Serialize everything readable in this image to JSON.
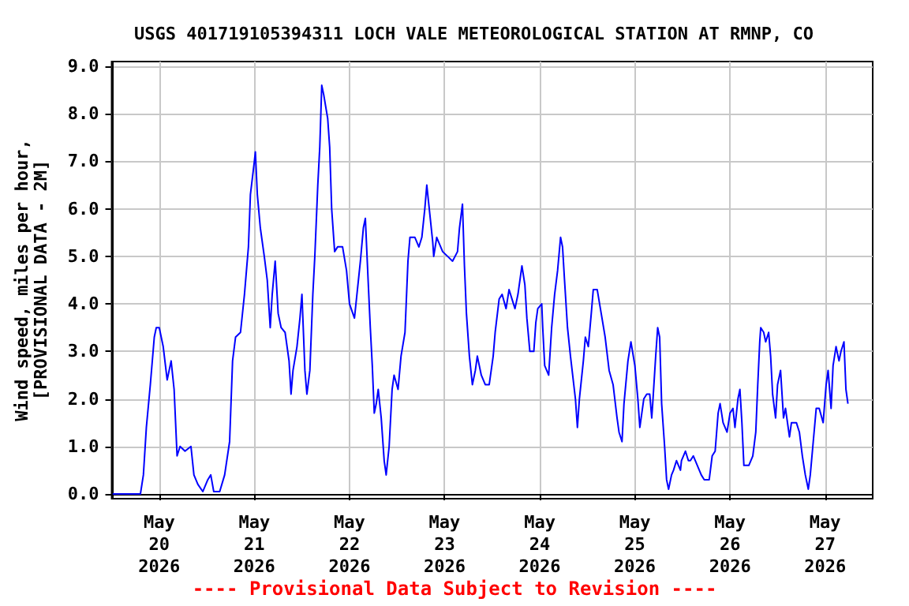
{
  "chart_data": {
    "type": "line",
    "title": "USGS 401719105394311 LOCH VALE METEOROLOGICAL STATION AT RMNP, CO",
    "ylabel": "Wind speed, miles per hour,\n[PROVISIONAL DATA - 2M]",
    "annotations": [
      "---- Provisional Data Subject to Revision ----"
    ],
    "xlim": [
      "2026-05-19T12:00",
      "2026-05-27T12:00"
    ],
    "xticks": [
      {
        "value": "2026-05-20",
        "label": "May\n20\n2026"
      },
      {
        "value": "2026-05-21",
        "label": "May\n21\n2026"
      },
      {
        "value": "2026-05-22",
        "label": "May\n22\n2026"
      },
      {
        "value": "2026-05-23",
        "label": "May\n23\n2026"
      },
      {
        "value": "2026-05-24",
        "label": "May\n24\n2026"
      },
      {
        "value": "2026-05-25",
        "label": "May\n25\n2026"
      },
      {
        "value": "2026-05-26",
        "label": "May\n26\n2026"
      },
      {
        "value": "2026-05-27",
        "label": "May\n27\n2026"
      }
    ],
    "ylim": [
      -0.1,
      9.1
    ],
    "yticks": [
      {
        "value": 0,
        "label": "0.0"
      },
      {
        "value": 1,
        "label": "1.0"
      },
      {
        "value": 2,
        "label": "2.0"
      },
      {
        "value": 3,
        "label": "3.0"
      },
      {
        "value": 4,
        "label": "4.0"
      },
      {
        "value": 5,
        "label": "5.0"
      },
      {
        "value": 6,
        "label": "6.0"
      },
      {
        "value": 7,
        "label": "7.0"
      },
      {
        "value": 8,
        "label": "8.0"
      },
      {
        "value": 9,
        "label": "9.0"
      }
    ],
    "grid": true,
    "marker": "none",
    "line_style": "solid",
    "series": [
      {
        "color": "#0000ff",
        "x": [
          "2026-05-19T12:15",
          "2026-05-19T19:15",
          "2026-05-19T20:00",
          "2026-05-19T20:45",
          "2026-05-19T21:45",
          "2026-05-19T22:45",
          "2026-05-19T23:15",
          "2026-05-20T00:00",
          "2026-05-20T01:00",
          "2026-05-20T02:00",
          "2026-05-20T03:00",
          "2026-05-20T03:45",
          "2026-05-20T04:30",
          "2026-05-20T05:15",
          "2026-05-20T06:30",
          "2026-05-20T08:00",
          "2026-05-20T08:45",
          "2026-05-20T09:45",
          "2026-05-20T11:00",
          "2026-05-20T12:15",
          "2026-05-20T13:00",
          "2026-05-20T13:45",
          "2026-05-20T15:15",
          "2026-05-20T16:30",
          "2026-05-20T17:45",
          "2026-05-20T18:30",
          "2026-05-20T19:15",
          "2026-05-20T20:30",
          "2026-05-20T21:30",
          "2026-05-20T22:30",
          "2026-05-20T23:00",
          "2026-05-21T00:00",
          "2026-05-21T00:15",
          "2026-05-21T00:45",
          "2026-05-21T01:30",
          "2026-05-21T02:30",
          "2026-05-21T03:15",
          "2026-05-21T04:00",
          "2026-05-21T04:30",
          "2026-05-21T05:15",
          "2026-05-21T06:00",
          "2026-05-21T06:45",
          "2026-05-21T07:45",
          "2026-05-21T08:45",
          "2026-05-21T09:15",
          "2026-05-21T09:45",
          "2026-05-21T10:45",
          "2026-05-21T11:30",
          "2026-05-21T12:00",
          "2026-05-21T12:45",
          "2026-05-21T13:15",
          "2026-05-21T14:00",
          "2026-05-21T14:45",
          "2026-05-21T15:15",
          "2026-05-21T16:00",
          "2026-05-21T16:30",
          "2026-05-21T17:00",
          "2026-05-21T17:30",
          "2026-05-21T18:30",
          "2026-05-21T19:00",
          "2026-05-21T19:30",
          "2026-05-21T20:15",
          "2026-05-21T21:00",
          "2026-05-21T22:15",
          "2026-05-21T23:15",
          "2026-05-22T00:00",
          "2026-05-22T01:15",
          "2026-05-22T01:45",
          "2026-05-22T02:45",
          "2026-05-22T03:30",
          "2026-05-22T04:00",
          "2026-05-22T04:45",
          "2026-05-22T05:15",
          "2026-05-22T05:45",
          "2026-05-22T06:15",
          "2026-05-22T06:45",
          "2026-05-22T07:15",
          "2026-05-22T08:00",
          "2026-05-22T08:45",
          "2026-05-22T09:15",
          "2026-05-22T10:00",
          "2026-05-22T10:45",
          "2026-05-22T11:15",
          "2026-05-22T12:15",
          "2026-05-22T13:00",
          "2026-05-22T14:00",
          "2026-05-22T14:45",
          "2026-05-22T15:15",
          "2026-05-22T16:30",
          "2026-05-22T17:30",
          "2026-05-22T18:15",
          "2026-05-22T19:00",
          "2026-05-22T19:30",
          "2026-05-22T20:15",
          "2026-05-22T21:00",
          "2026-05-22T21:15",
          "2026-05-22T22:00",
          "2026-05-22T22:30",
          "2026-05-22T23:30",
          "2026-05-23T00:45",
          "2026-05-23T02:00",
          "2026-05-23T03:15",
          "2026-05-23T03:45",
          "2026-05-23T04:30",
          "2026-05-23T05:00",
          "2026-05-23T05:30",
          "2026-05-23T06:15",
          "2026-05-23T07:00",
          "2026-05-23T07:45",
          "2026-05-23T08:15",
          "2026-05-23T09:15",
          "2026-05-23T10:15",
          "2026-05-23T11:15",
          "2026-05-23T12:15",
          "2026-05-23T12:45",
          "2026-05-23T13:45",
          "2026-05-23T14:30",
          "2026-05-23T15:30",
          "2026-05-23T16:15",
          "2026-05-23T17:00",
          "2026-05-23T17:45",
          "2026-05-23T18:30",
          "2026-05-23T19:30",
          "2026-05-23T20:15",
          "2026-05-23T20:45",
          "2026-05-23T21:30",
          "2026-05-23T22:30",
          "2026-05-23T23:00",
          "2026-05-23T23:30",
          "2026-05-24T00:30",
          "2026-05-24T00:45",
          "2026-05-24T01:15",
          "2026-05-24T02:15",
          "2026-05-24T03:00",
          "2026-05-24T03:45",
          "2026-05-24T04:30",
          "2026-05-24T05:15",
          "2026-05-24T05:45",
          "2026-05-24T06:15",
          "2026-05-24T07:00",
          "2026-05-24T07:45",
          "2026-05-24T09:00",
          "2026-05-24T09:30",
          "2026-05-24T10:00",
          "2026-05-24T11:00",
          "2026-05-24T11:30",
          "2026-05-24T12:15",
          "2026-05-24T13:00",
          "2026-05-24T13:30",
          "2026-05-24T14:30",
          "2026-05-24T15:30",
          "2026-05-24T16:30",
          "2026-05-24T17:30",
          "2026-05-24T18:30",
          "2026-05-24T19:30",
          "2026-05-24T20:00",
          "2026-05-24T20:45",
          "2026-05-24T21:15",
          "2026-05-24T22:15",
          "2026-05-24T23:00",
          "2026-05-25T00:00",
          "2026-05-25T00:45",
          "2026-05-25T01:15",
          "2026-05-25T01:45",
          "2026-05-25T02:15",
          "2026-05-25T03:00",
          "2026-05-25T03:45",
          "2026-05-25T04:15",
          "2026-05-25T04:30",
          "2026-05-25T05:15",
          "2026-05-25T05:45",
          "2026-05-25T06:15",
          "2026-05-25T06:45",
          "2026-05-25T07:30",
          "2026-05-25T08:00",
          "2026-05-25T08:30",
          "2026-05-25T09:15",
          "2026-05-25T09:45",
          "2026-05-25T10:30",
          "2026-05-25T11:30",
          "2026-05-25T11:45",
          "2026-05-25T12:45",
          "2026-05-25T13:30",
          "2026-05-25T14:00",
          "2026-05-25T14:45",
          "2026-05-25T15:45",
          "2026-05-25T16:45",
          "2026-05-25T17:30",
          "2026-05-25T18:45",
          "2026-05-25T19:30",
          "2026-05-25T20:15",
          "2026-05-25T21:00",
          "2026-05-25T21:30",
          "2026-05-25T22:15",
          "2026-05-25T23:15",
          "2026-05-26T00:00",
          "2026-05-26T00:45",
          "2026-05-26T01:15",
          "2026-05-26T02:00",
          "2026-05-26T02:30",
          "2026-05-26T03:00",
          "2026-05-26T03:30",
          "2026-05-26T04:45",
          "2026-05-26T05:45",
          "2026-05-26T06:30",
          "2026-05-26T07:00",
          "2026-05-26T07:30",
          "2026-05-26T07:45",
          "2026-05-26T08:30",
          "2026-05-26T09:00",
          "2026-05-26T09:45",
          "2026-05-26T10:15",
          "2026-05-26T10:45",
          "2026-05-26T11:30",
          "2026-05-26T12:00",
          "2026-05-26T12:45",
          "2026-05-26T13:30",
          "2026-05-26T14:00",
          "2026-05-26T15:00",
          "2026-05-26T15:30",
          "2026-05-26T16:45",
          "2026-05-26T17:30",
          "2026-05-26T18:15",
          "2026-05-26T19:00",
          "2026-05-26T19:45",
          "2026-05-26T20:15",
          "2026-05-26T21:00",
          "2026-05-26T21:45",
          "2026-05-26T22:30",
          "2026-05-26T23:30",
          "2026-05-27T00:15",
          "2026-05-27T00:45",
          "2026-05-27T01:30",
          "2026-05-27T02:00",
          "2026-05-27T02:45",
          "2026-05-27T03:30",
          "2026-05-27T04:00",
          "2026-05-27T04:45",
          "2026-05-27T05:15",
          "2026-05-27T05:45"
        ],
        "values": [
          0.0,
          0.0,
          0.4,
          1.4,
          2.3,
          3.3,
          3.5,
          3.5,
          3.1,
          2.4,
          2.8,
          2.2,
          0.8,
          1.0,
          0.9,
          1.0,
          0.4,
          0.2,
          0.05,
          0.3,
          0.4,
          0.05,
          0.05,
          0.4,
          1.1,
          2.8,
          3.3,
          3.4,
          4.2,
          5.2,
          6.3,
          7.0,
          7.2,
          6.3,
          5.6,
          5.0,
          4.5,
          3.5,
          4.2,
          4.9,
          3.8,
          3.5,
          3.4,
          2.8,
          2.1,
          2.6,
          3.1,
          3.7,
          4.2,
          2.6,
          2.1,
          2.6,
          4.2,
          5.0,
          6.5,
          7.3,
          8.6,
          8.4,
          7.9,
          7.3,
          6.0,
          5.1,
          5.2,
          5.2,
          4.7,
          4.0,
          3.7,
          4.1,
          4.9,
          5.6,
          5.8,
          4.4,
          3.5,
          2.7,
          1.7,
          1.9,
          2.2,
          1.6,
          0.7,
          0.4,
          1.0,
          2.2,
          2.5,
          2.2,
          2.9,
          3.4,
          4.9,
          5.4,
          5.4,
          5.2,
          5.4,
          6.0,
          6.5,
          5.9,
          5.3,
          5.0,
          5.4,
          5.3,
          5.1,
          5.0,
          4.9,
          5.1,
          5.6,
          6.1,
          4.8,
          3.8,
          2.9,
          2.3,
          2.6,
          2.9,
          2.5,
          2.3,
          2.3,
          2.9,
          3.4,
          4.1,
          4.2,
          3.9,
          4.3,
          4.1,
          3.9,
          4.2,
          4.8,
          4.4,
          3.7,
          3.0,
          3.0,
          3.6,
          3.9,
          4.0,
          3.5,
          2.7,
          2.5,
          3.5,
          4.2,
          4.7,
          5.4,
          5.2,
          4.5,
          3.5,
          2.9,
          2.0,
          1.4,
          2.0,
          2.8,
          3.3,
          3.1,
          3.8,
          4.3,
          4.3,
          3.8,
          3.3,
          2.6,
          2.3,
          1.6,
          1.3,
          1.1,
          1.9,
          2.8,
          3.2,
          2.7,
          2.0,
          1.4,
          1.7,
          2.0,
          2.1,
          2.1,
          1.6,
          1.9,
          2.9,
          3.5,
          3.3,
          1.9,
          1.0,
          0.3,
          0.1,
          0.4,
          0.5,
          0.7,
          0.5,
          0.7,
          0.9,
          0.7,
          0.7,
          0.8,
          0.6,
          0.4,
          0.3,
          0.3,
          0.8,
          0.9,
          1.7,
          1.9,
          1.5,
          1.3,
          1.7,
          1.8,
          1.4,
          2.0,
          2.2,
          1.5,
          0.6,
          0.6,
          0.8,
          1.3,
          2.3,
          3.2,
          3.5,
          3.4,
          3.2,
          3.4,
          2.9,
          2.1,
          1.6,
          2.3,
          2.6,
          1.6,
          1.8,
          1.2,
          1.5,
          1.5,
          1.3,
          0.8,
          0.4,
          0.1,
          0.4,
          1.1,
          1.8,
          1.8,
          1.5,
          2.3,
          2.6,
          1.8,
          2.7,
          3.1,
          2.8,
          3.0,
          3.2,
          2.2,
          1.9
        ]
      }
    ]
  }
}
